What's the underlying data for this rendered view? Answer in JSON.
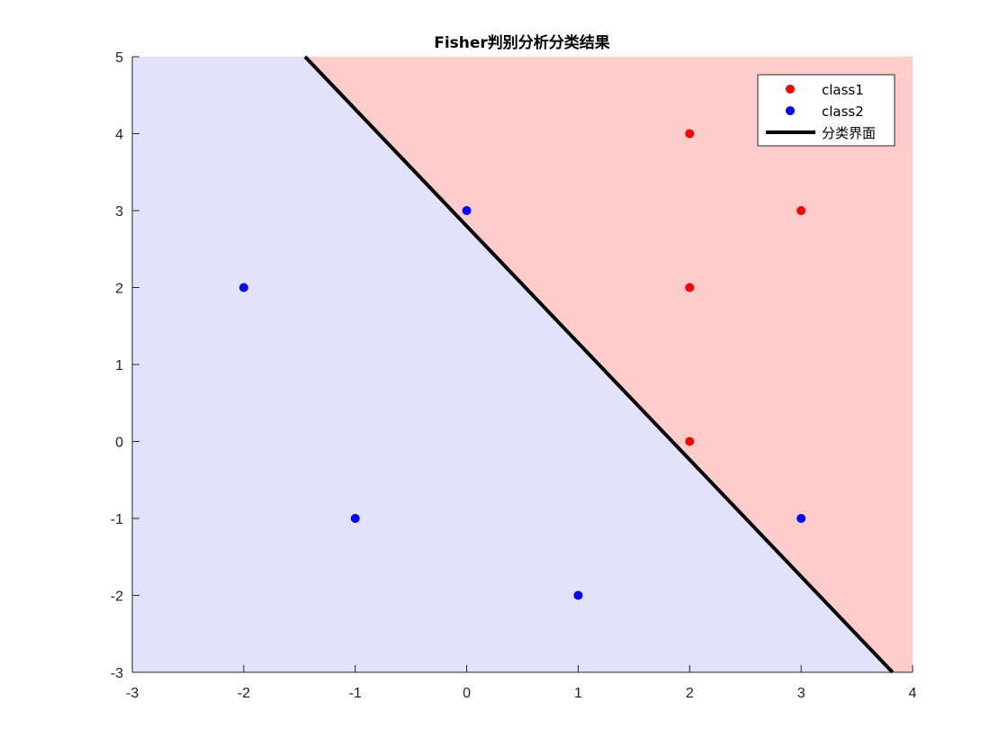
{
  "chart_data": {
    "type": "scatter",
    "title": "Fisher判别分析分类结果",
    "xlabel": "",
    "ylabel": "",
    "xlim": [
      -3,
      4
    ],
    "ylim": [
      -3,
      5
    ],
    "x_ticks": [
      "-3",
      "-2",
      "-1",
      "0",
      "1",
      "2",
      "3",
      "4"
    ],
    "y_ticks": [
      "-3",
      "-2",
      "-1",
      "0",
      "1",
      "2",
      "3",
      "4",
      "5"
    ],
    "grid": false,
    "legend_position": "top-right",
    "regions": [
      {
        "class": "class1",
        "color": "#ffcccc"
      },
      {
        "class": "class2",
        "color": "#e2e2fd"
      }
    ],
    "series": [
      {
        "name": "class1",
        "color": "#ff0000",
        "points": [
          [
            2,
            4
          ],
          [
            3,
            3
          ],
          [
            2,
            2
          ],
          [
            2,
            0
          ]
        ]
      },
      {
        "name": "class2",
        "color": "#0000ff",
        "points": [
          [
            0,
            3
          ],
          [
            -2,
            2
          ],
          [
            -1,
            -1
          ],
          [
            3,
            -1
          ],
          [
            1,
            -2
          ]
        ]
      }
    ],
    "boundary": {
      "name": "分类界面",
      "color": "#000000",
      "points": [
        [
          -1.45,
          5
        ],
        [
          3.82,
          -3
        ]
      ]
    }
  }
}
